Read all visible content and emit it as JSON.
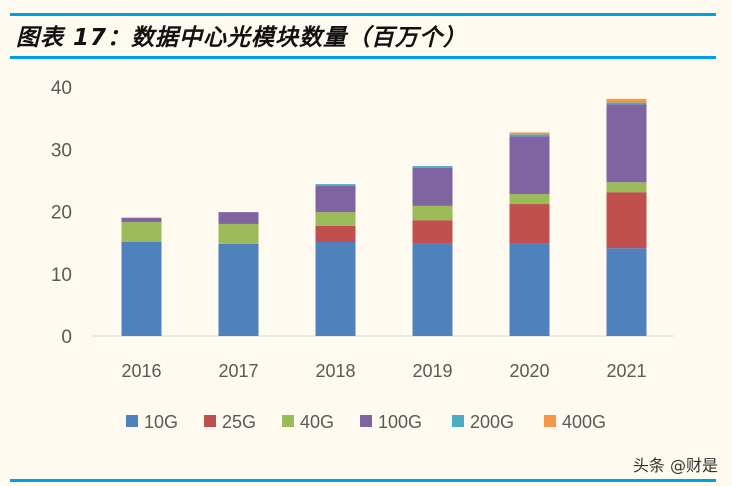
{
  "title": "图表 17：数据中心光模块数量（百万个）",
  "watermark": "头条 @财是",
  "chart_data": {
    "type": "bar",
    "stacked": true,
    "title": "图表 17：数据中心光模块数量（百万个）",
    "categories": [
      "2016",
      "2017",
      "2018",
      "2019",
      "2020",
      "2021"
    ],
    "ylim": [
      0,
      40
    ],
    "yticks": [
      0,
      10,
      20,
      30,
      40
    ],
    "grid": false,
    "legend": "bottom",
    "series": [
      {
        "name": "10G",
        "color": "#4f81bd",
        "values": [
          15.1,
          14.8,
          15.1,
          14.8,
          14.8,
          14.1
        ]
      },
      {
        "name": "25G",
        "color": "#c0504d",
        "values": [
          0,
          0,
          2.6,
          3.8,
          6.4,
          9.0
        ]
      },
      {
        "name": "40G",
        "color": "#9bbb59",
        "values": [
          3.2,
          3.2,
          2.2,
          2.3,
          1.6,
          1.6
        ]
      },
      {
        "name": "100G",
        "color": "#8064a2",
        "values": [
          0.7,
          1.9,
          4.2,
          6.1,
          9.3,
          12.5
        ]
      },
      {
        "name": "200G",
        "color": "#4bacc6",
        "values": [
          0,
          0,
          0.3,
          0.3,
          0.3,
          0.3
        ]
      },
      {
        "name": "400G",
        "color": "#f79646",
        "values": [
          0,
          0,
          0,
          0,
          0.3,
          0.6
        ]
      }
    ]
  }
}
